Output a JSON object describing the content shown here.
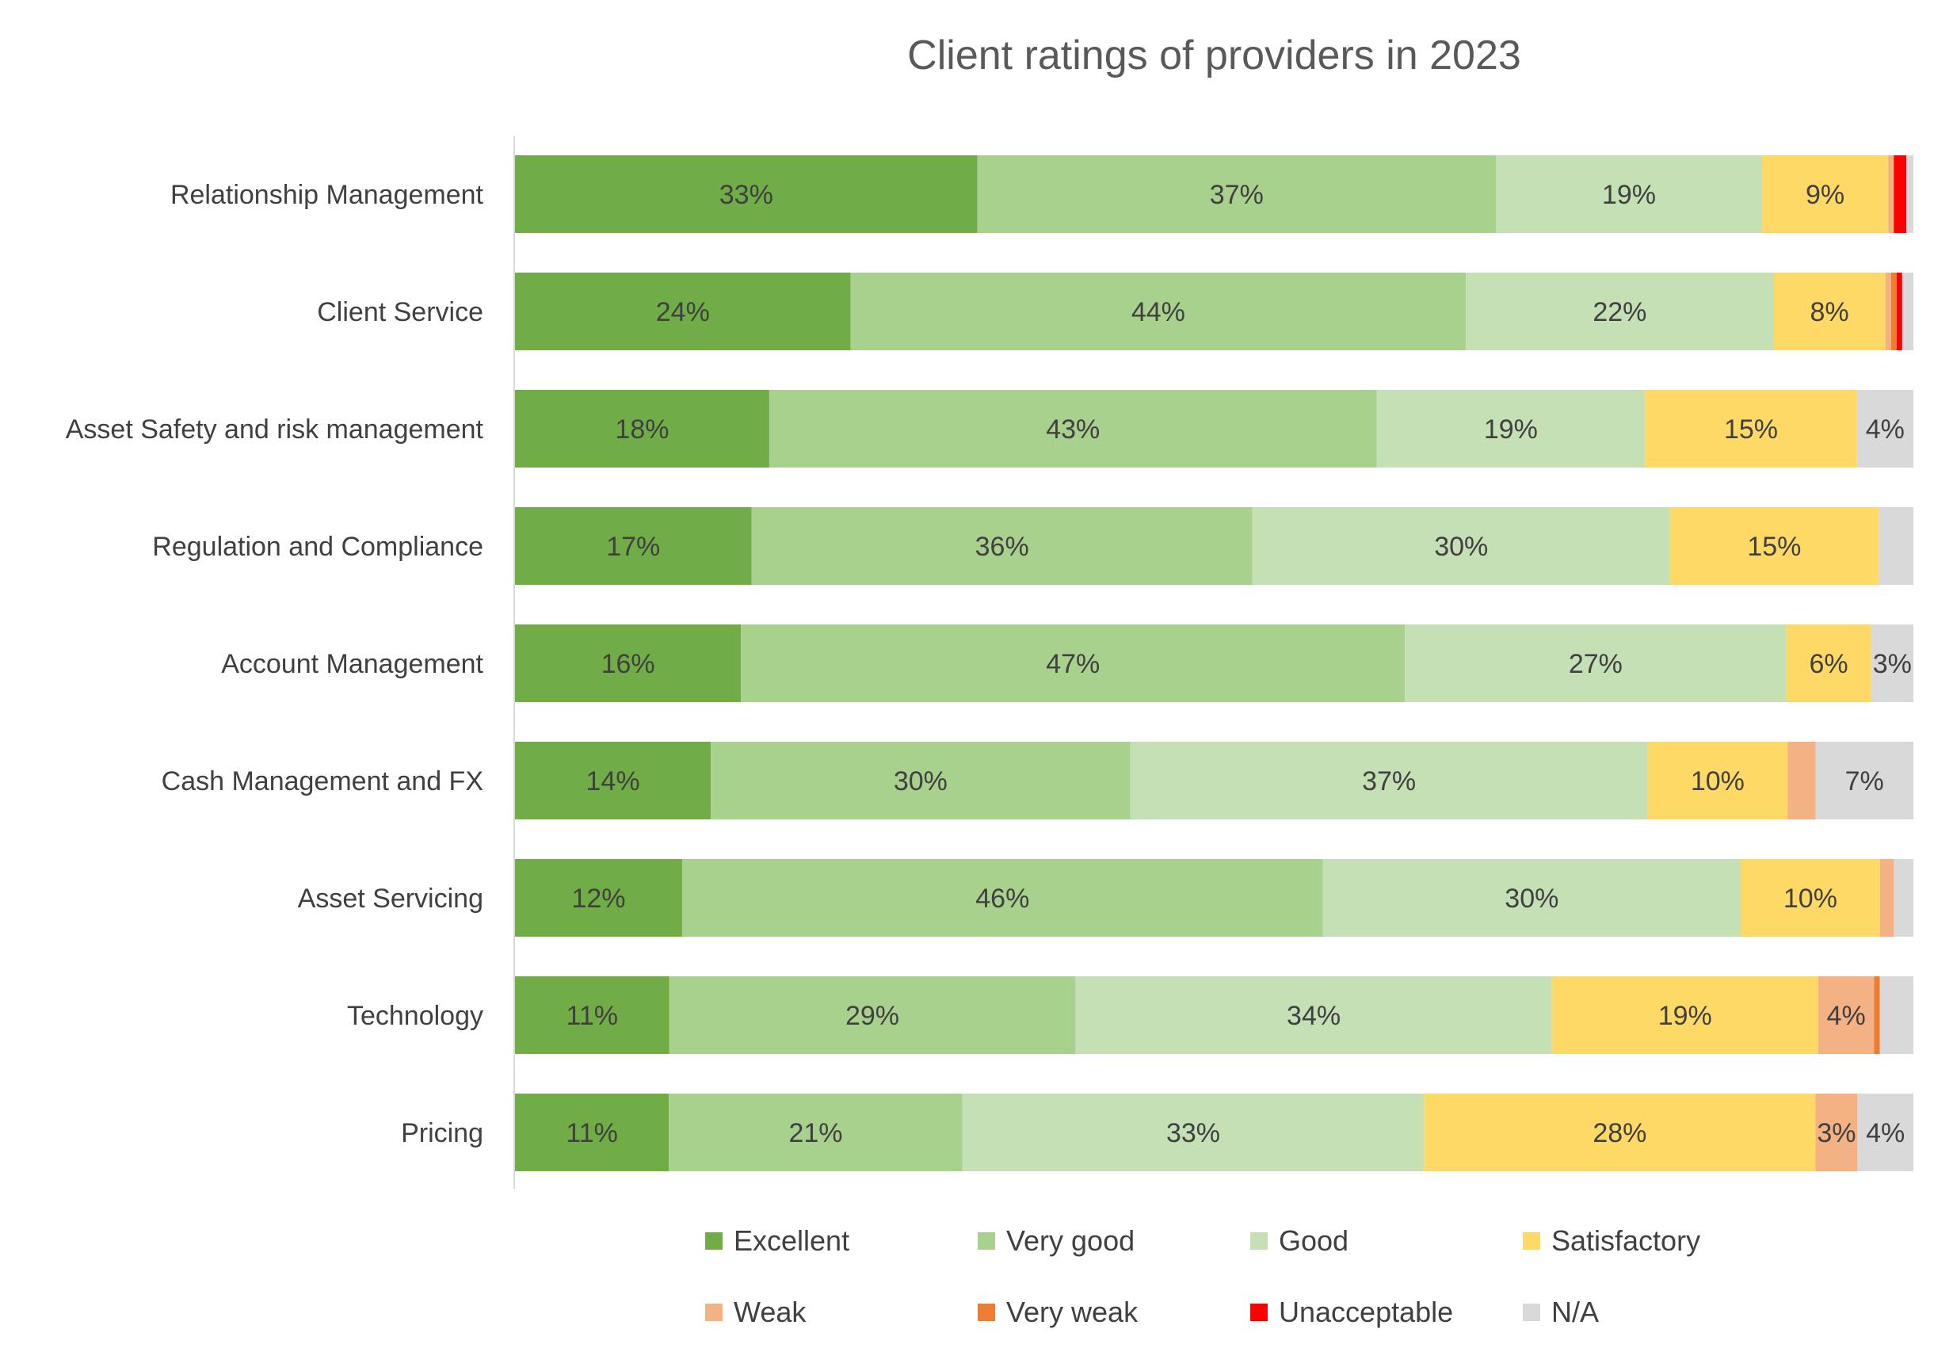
{
  "chart_data": {
    "type": "bar",
    "orientation": "horizontal",
    "stacked": "percent",
    "title": "Client ratings of providers in 2023",
    "xlabel": "",
    "ylabel": "",
    "xlim": [
      0,
      100
    ],
    "grid": false,
    "legend_position": "bottom",
    "categories": [
      "Relationship Management",
      "Client Service",
      "Asset Safety and risk management",
      "Regulation and Compliance",
      "Account Management",
      "Cash Management and FX",
      "Asset Servicing",
      "Technology",
      "Pricing"
    ],
    "series": [
      {
        "name": "Excellent",
        "color": "#70AD47",
        "values": [
          33,
          24,
          18,
          17,
          16,
          14,
          12,
          11,
          11
        ],
        "labels": [
          "33%",
          "24%",
          "18%",
          "17%",
          "16%",
          "14%",
          "12%",
          "11%",
          "11%"
        ]
      },
      {
        "name": "Very good",
        "color": "#A9D18E",
        "values": [
          37,
          44,
          43,
          36,
          47,
          30,
          46,
          29,
          21
        ],
        "labels": [
          "37%",
          "44%",
          "43%",
          "36%",
          "47%",
          "30%",
          "46%",
          "29%",
          "21%"
        ]
      },
      {
        "name": "Good",
        "color": "#C5E0B4",
        "values": [
          19,
          22,
          19,
          30,
          27,
          37,
          30,
          34,
          33
        ],
        "labels": [
          "19%",
          "22%",
          "19%",
          "30%",
          "27%",
          "37%",
          "30%",
          "34%",
          "33%"
        ]
      },
      {
        "name": "Satisfactory",
        "color": "#FFD966",
        "values": [
          9,
          8,
          15,
          15,
          6,
          10,
          10,
          19,
          28
        ],
        "labels": [
          "9%",
          "8%",
          "15%",
          "15%",
          "6%",
          "10%",
          "10%",
          "19%",
          "28%"
        ]
      },
      {
        "name": "Weak",
        "color": "#F4B183",
        "values": [
          0.4,
          0.4,
          0,
          0,
          0,
          2,
          1,
          4,
          3
        ],
        "labels": [
          "",
          "",
          "",
          "",
          "",
          "",
          "",
          "4%",
          "3%"
        ]
      },
      {
        "name": "Very weak",
        "color": "#ED7D31",
        "values": [
          0,
          0.4,
          0,
          0,
          0,
          0,
          0,
          0.4,
          0
        ],
        "labels": [
          "",
          "",
          "",
          "",
          "",
          "",
          "",
          "",
          ""
        ]
      },
      {
        "name": "Unacceptable",
        "color": "#FF0000",
        "values": [
          0.9,
          0.4,
          0,
          0,
          0,
          0,
          0,
          0,
          0
        ],
        "labels": [
          "",
          "",
          "",
          "",
          "",
          "",
          "",
          "",
          ""
        ]
      },
      {
        "name": "N/A",
        "color": "#D9D9D9",
        "values": [
          0.5,
          0.8,
          4,
          2.5,
          3,
          7,
          1.4,
          2.4,
          4
        ],
        "labels": [
          "",
          "",
          "4%",
          "",
          "3%",
          "7%",
          "",
          "",
          "4%"
        ]
      }
    ]
  }
}
